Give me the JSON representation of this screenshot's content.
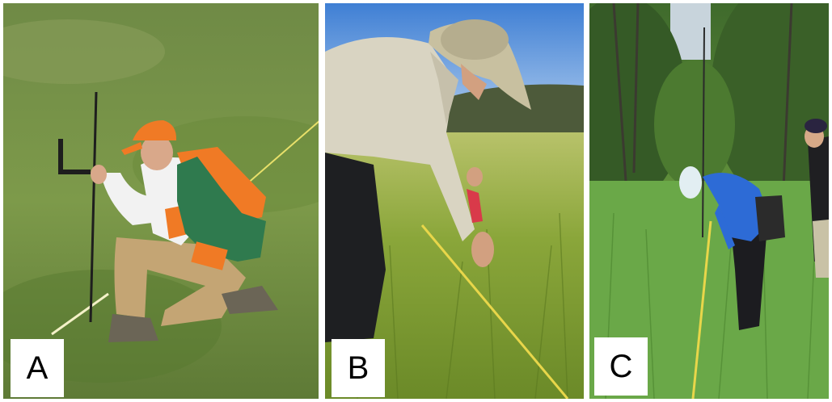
{
  "panels": [
    {
      "id": "A",
      "label": "A"
    },
    {
      "id": "B",
      "label": "B"
    },
    {
      "id": "C",
      "label": "C"
    }
  ],
  "colors": {
    "label_background": "#ffffff",
    "label_text": "#000000"
  }
}
